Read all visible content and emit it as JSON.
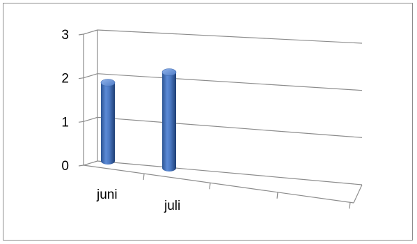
{
  "chart_data": {
    "type": "bar",
    "style": "3d-cylinder",
    "categories": [
      "juni",
      "juli"
    ],
    "values": [
      1.8,
      2.2
    ],
    "ylim": [
      0,
      3
    ],
    "yticks": [
      "0",
      "1",
      "2",
      "3"
    ],
    "grid": true,
    "legend": "none",
    "bar_color": "#4a78c2",
    "title": "",
    "xlabel": "",
    "ylabel": ""
  }
}
